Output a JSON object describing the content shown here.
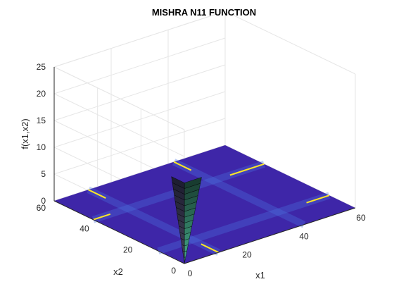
{
  "chart_data": {
    "type": "surface",
    "title": "MISHRA N11 FUNCTION",
    "xlabel": "x1",
    "ylabel": "x2",
    "zlabel": "f(x1,x2)",
    "xlim": [
      0,
      60
    ],
    "ylim": [
      0,
      60
    ],
    "zlim": [
      0,
      25
    ],
    "x_ticks": [
      "0",
      "20",
      "40",
      "60"
    ],
    "y_ticks": [
      "0",
      "20",
      "40",
      "60"
    ],
    "z_ticks": [
      "0",
      "5",
      "10",
      "15",
      "20",
      "25"
    ],
    "grid": true,
    "colormap": "parula",
    "surface_features": [
      {
        "description": "steep valley walls near x1=0 and x2=0",
        "max_value": 15
      },
      {
        "description": "near-flat plane at f=0 elsewhere",
        "value": 0
      }
    ],
    "colors": {
      "surface_low": "#3e26a8",
      "surface_high": "#f9fb0e",
      "highlight_line": "#fde725"
    }
  }
}
